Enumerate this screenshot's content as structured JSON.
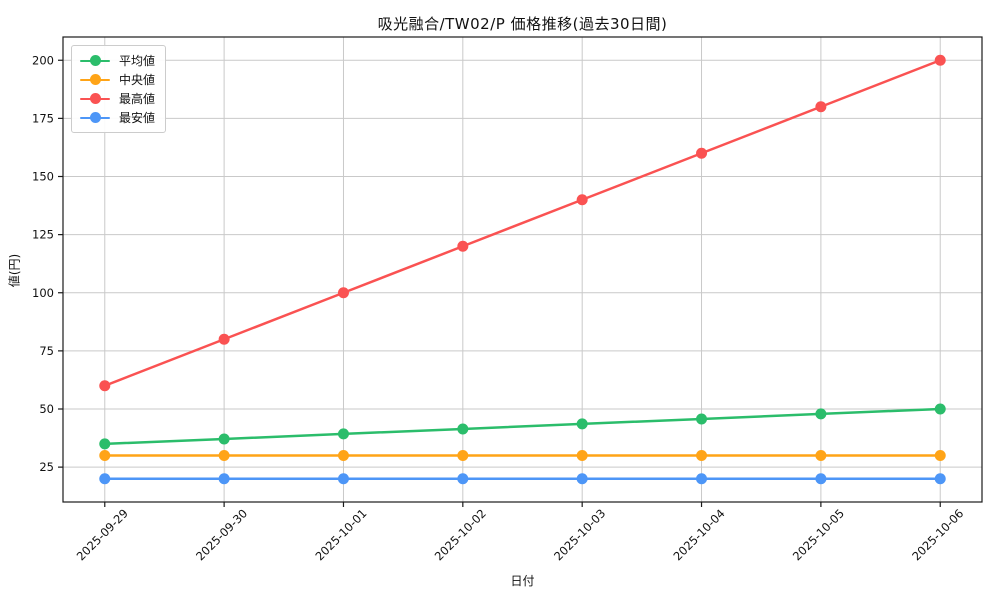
{
  "figure": {
    "title": "吸光融合/TW02/P 価格推移(過去30日間)",
    "xlabel": "日付",
    "ylabel": "値(円)"
  },
  "chart_data": {
    "type": "line",
    "title": "吸光融合/TW02/P 価格推移(過去30日間)",
    "xlabel": "日付",
    "ylabel": "値(円)",
    "categories": [
      "2025-09-29",
      "2025-09-30",
      "2025-10-01",
      "2025-10-02",
      "2025-10-03",
      "2025-10-04",
      "2025-10-05",
      "2025-10-06"
    ],
    "series": [
      {
        "name": "平均値",
        "color": "#2bbd6b",
        "values": [
          35.0,
          37.1,
          39.3,
          41.4,
          43.6,
          45.7,
          47.9,
          50.0
        ]
      },
      {
        "name": "中央値",
        "color": "#ffa417",
        "values": [
          30,
          30,
          30,
          30,
          30,
          30,
          30,
          30
        ]
      },
      {
        "name": "最高値",
        "color": "#fa5252",
        "values": [
          60,
          80,
          100,
          120,
          140,
          160,
          180,
          200
        ]
      },
      {
        "name": "最安値",
        "color": "#4d96f7",
        "values": [
          20,
          20,
          20,
          20,
          20,
          20,
          20,
          20
        ]
      }
    ],
    "yticks": [
      25,
      50,
      75,
      100,
      125,
      150,
      175,
      200
    ],
    "ylim": [
      10,
      210
    ],
    "grid": true,
    "legend_position": "upper-left",
    "colors": {
      "grid": "#c9c9c9",
      "spine": "#1a1a1a",
      "tick_text": "#111111"
    }
  }
}
